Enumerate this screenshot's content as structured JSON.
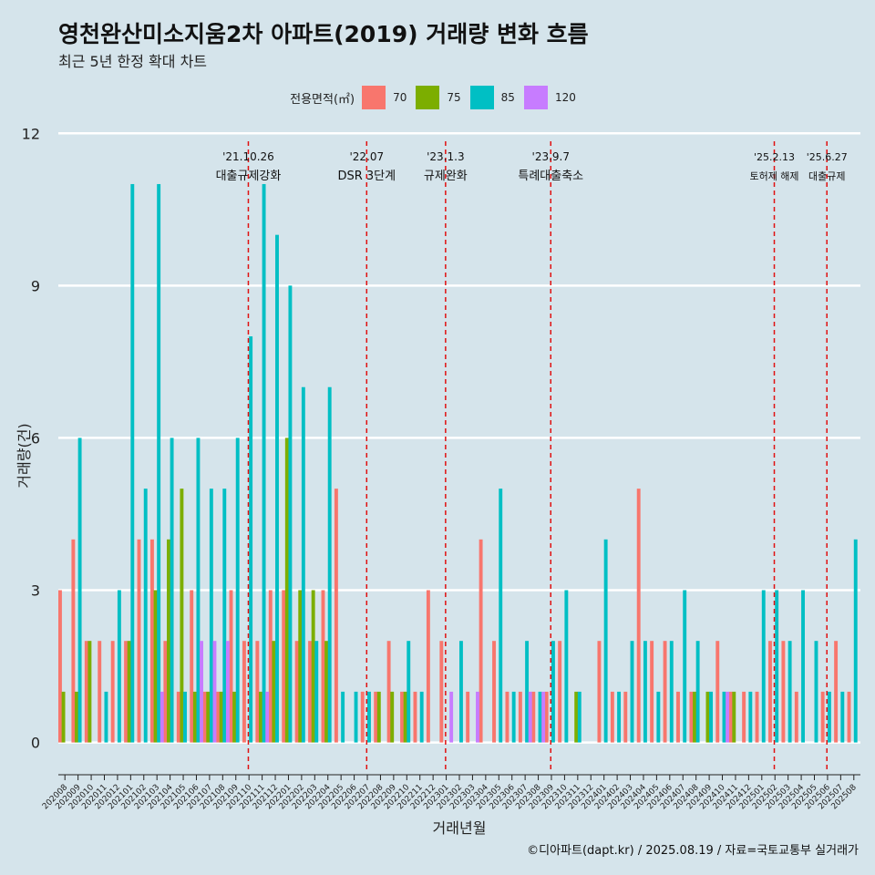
{
  "header": {
    "title": "영천완산미소지움2차 아파트(2019) 거래량 변화 흐름",
    "subtitle": "최근 5년 한정 확대 차트"
  },
  "legend": {
    "title": "전용면적(㎡)",
    "items": [
      {
        "label": "70",
        "color": "#f8766d"
      },
      {
        "label": "75",
        "color": "#7cae00"
      },
      {
        "label": "85",
        "color": "#00bfc4"
      },
      {
        "label": "120",
        "color": "#c77cff"
      }
    ]
  },
  "caption": "©디아파트(dapt.kr) / 2025.08.19 / 자료=국토교통부 실거래가",
  "chart_data": {
    "type": "bar",
    "xlabel": "거래년월",
    "ylabel": "거래량(건)",
    "ylim": [
      -0.6,
      12.4
    ],
    "yticks": [
      0,
      3,
      6,
      9,
      12
    ],
    "grid": true,
    "categories": [
      "202008",
      "202009",
      "202010",
      "202011",
      "202012",
      "202101",
      "202102",
      "202103",
      "202104",
      "202105",
      "202106",
      "202107",
      "202108",
      "202109",
      "202110",
      "202111",
      "202112",
      "202201",
      "202202",
      "202203",
      "202204",
      "202205",
      "202206",
      "202207",
      "202208",
      "202209",
      "202210",
      "202211",
      "202212",
      "202301",
      "202302",
      "202303",
      "202304",
      "202305",
      "202306",
      "202307",
      "202308",
      "202309",
      "202310",
      "202311",
      "202312",
      "202401",
      "202402",
      "202403",
      "202404",
      "202405",
      "202406",
      "202407",
      "202408",
      "202409",
      "202410",
      "202411",
      "202412",
      "202501",
      "202502",
      "202503",
      "202504",
      "202505",
      "202506",
      "202507",
      "202508"
    ],
    "series": [
      {
        "name": "70",
        "color": "#f8766d",
        "values": [
          3,
          4,
          2,
          2,
          2,
          2,
          4,
          4,
          2,
          1,
          3,
          1,
          1,
          3,
          2,
          2,
          3,
          3,
          2,
          2,
          3,
          5,
          0,
          1,
          1,
          2,
          1,
          1,
          3,
          2,
          0,
          1,
          4,
          2,
          1,
          1,
          1,
          1,
          2,
          0,
          0,
          2,
          1,
          1,
          5,
          2,
          2,
          1,
          1,
          0,
          2,
          1,
          1,
          1,
          2,
          2,
          1,
          0,
          1,
          2,
          1
        ]
      },
      {
        "name": "75",
        "color": "#7cae00",
        "values": [
          1,
          1,
          2,
          0,
          0,
          2,
          0,
          3,
          4,
          5,
          1,
          1,
          1,
          1,
          0,
          1,
          2,
          6,
          3,
          3,
          2,
          0,
          0,
          0,
          1,
          1,
          1,
          0,
          0,
          0,
          0,
          0,
          0,
          0,
          0,
          0,
          0,
          0,
          0,
          1,
          0,
          0,
          0,
          0,
          0,
          0,
          0,
          0,
          1,
          1,
          0,
          1,
          0,
          0,
          0,
          0,
          0,
          0,
          0,
          0,
          0
        ]
      },
      {
        "name": "85",
        "color": "#00bfc4",
        "values": [
          0,
          6,
          0,
          1,
          3,
          11,
          5,
          11,
          6,
          1,
          6,
          5,
          5,
          6,
          8,
          11,
          10,
          9,
          7,
          2,
          7,
          1,
          1,
          1,
          0,
          0,
          2,
          1,
          0,
          0,
          2,
          0,
          0,
          5,
          1,
          2,
          1,
          2,
          3,
          1,
          0,
          4,
          1,
          2,
          2,
          1,
          2,
          3,
          2,
          1,
          1,
          0,
          1,
          3,
          3,
          2,
          3,
          2,
          1,
          1,
          4
        ]
      },
      {
        "name": "120",
        "color": "#c77cff",
        "values": [
          0,
          0,
          0,
          0,
          0,
          0,
          0,
          1,
          0,
          0,
          2,
          2,
          2,
          0,
          0,
          1,
          0,
          0,
          0,
          0,
          0,
          0,
          0,
          0,
          0,
          0,
          0,
          0,
          0,
          1,
          0,
          1,
          0,
          0,
          0,
          1,
          1,
          0,
          0,
          0,
          0,
          0,
          0,
          0,
          0,
          0,
          0,
          0,
          0,
          0,
          1,
          0,
          0,
          0,
          0,
          0,
          0,
          0,
          0,
          0,
          0
        ]
      }
    ],
    "events": [
      {
        "category": "202110",
        "date": "'21.10.26",
        "label": "대출규제강화"
      },
      {
        "category": "202207",
        "date": "'22.07",
        "label": "DSR 3단계"
      },
      {
        "category": "202301",
        "date": "'23.1.3",
        "label": "규제완화"
      },
      {
        "category": "202309",
        "date": "'23.9.7",
        "label": "특례대출축소"
      },
      {
        "category": "202502",
        "date": "'25.2.13",
        "label": "토허제 해제"
      },
      {
        "category": "202506",
        "date": "'25.6.27",
        "label": "대출규제"
      }
    ]
  }
}
